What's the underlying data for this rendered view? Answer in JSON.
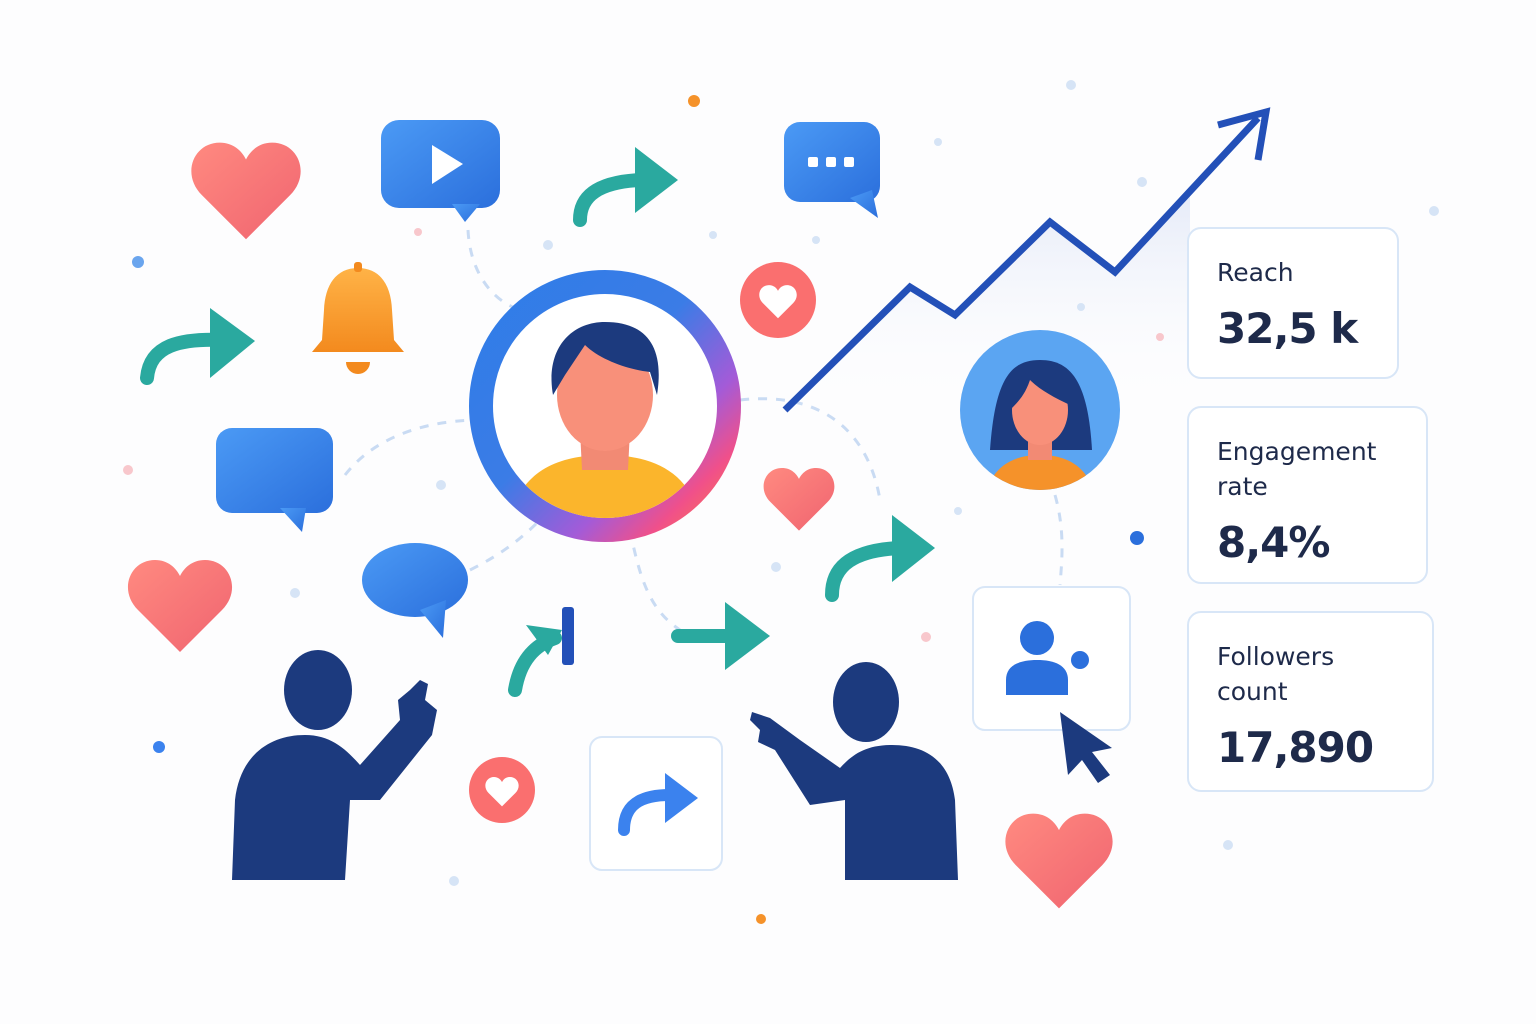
{
  "cards": [
    {
      "label": "Reach",
      "value": "32,5 k"
    },
    {
      "label": "Engagement rate",
      "value": "8,4%"
    },
    {
      "label": "Followers count",
      "value": "17,890"
    }
  ]
}
